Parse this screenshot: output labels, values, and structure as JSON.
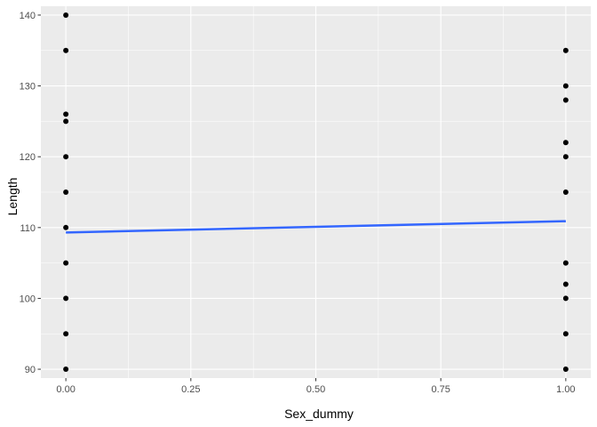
{
  "chart_data": {
    "type": "scatter",
    "xlabel": "Sex_dummy",
    "ylabel": "Length",
    "xlim": [
      -0.05,
      1.05
    ],
    "ylim": [
      88.75,
      141.25
    ],
    "x_ticks": [
      {
        "value": 0,
        "label": "0.00"
      },
      {
        "value": 0.25,
        "label": "0.25"
      },
      {
        "value": 0.5,
        "label": "0.50"
      },
      {
        "value": 0.75,
        "label": "0.75"
      },
      {
        "value": 1,
        "label": "1.00"
      }
    ],
    "y_ticks": [
      {
        "value": 90,
        "label": "90"
      },
      {
        "value": 100,
        "label": "100"
      },
      {
        "value": 110,
        "label": "110"
      },
      {
        "value": 120,
        "label": "120"
      },
      {
        "value": 130,
        "label": "130"
      },
      {
        "value": 140,
        "label": "140"
      }
    ],
    "points": [
      {
        "x": 0,
        "y": 140
      },
      {
        "x": 0,
        "y": 135
      },
      {
        "x": 0,
        "y": 126
      },
      {
        "x": 0,
        "y": 125
      },
      {
        "x": 0,
        "y": 120
      },
      {
        "x": 0,
        "y": 115
      },
      {
        "x": 0,
        "y": 110
      },
      {
        "x": 0,
        "y": 105
      },
      {
        "x": 0,
        "y": 100
      },
      {
        "x": 0,
        "y": 95
      },
      {
        "x": 0,
        "y": 90
      },
      {
        "x": 1,
        "y": 135
      },
      {
        "x": 1,
        "y": 130
      },
      {
        "x": 1,
        "y": 128
      },
      {
        "x": 1,
        "y": 122
      },
      {
        "x": 1,
        "y": 120
      },
      {
        "x": 1,
        "y": 115
      },
      {
        "x": 1,
        "y": 105
      },
      {
        "x": 1,
        "y": 102
      },
      {
        "x": 1,
        "y": 100
      },
      {
        "x": 1,
        "y": 95
      },
      {
        "x": 1,
        "y": 90
      }
    ],
    "fit_line": {
      "x": [
        0,
        1
      ],
      "y": [
        109.3,
        110.9
      ]
    },
    "grid": true,
    "colors": {
      "panel": "#ebebeb",
      "grid_major": "#ffffff",
      "point": "#000000",
      "fit_line": "#3366ff",
      "tick_label": "#4d4d4d",
      "tick_mark": "#333333"
    }
  }
}
